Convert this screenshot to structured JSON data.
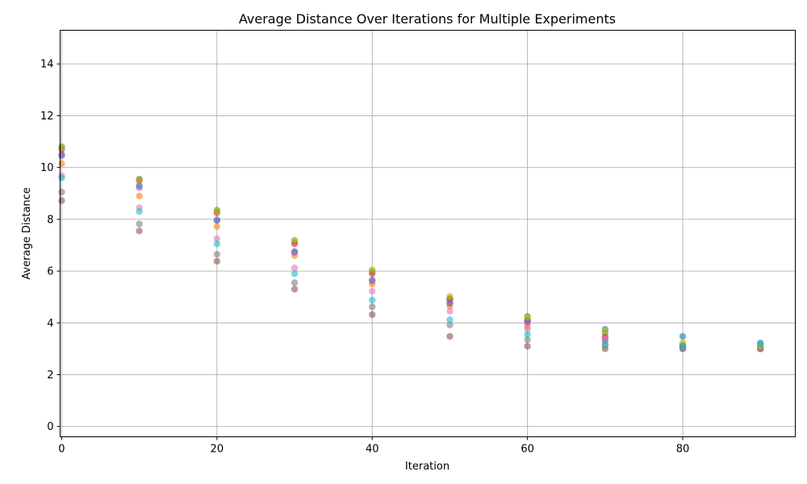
{
  "chart_data": {
    "type": "scatter",
    "title": "Average Distance Over Iterations for Multiple Experiments",
    "xlabel": "Iteration",
    "ylabel": "Average Distance",
    "xlim": [
      -0.2,
      94.5
    ],
    "ylim": [
      -0.4,
      15.3
    ],
    "xticks": [
      0,
      20,
      40,
      60,
      80
    ],
    "yticks": [
      0,
      2,
      4,
      6,
      8,
      10,
      12,
      14
    ],
    "grid": true,
    "legend": "none",
    "marker_alpha": 0.6,
    "series": [
      {
        "color": "#1f77b4",
        "x": [
          0,
          10,
          20,
          30,
          40,
          50,
          60,
          70,
          80,
          90
        ],
        "y": [
          10.5,
          9.3,
          7.95,
          6.75,
          5.65,
          4.75,
          4.05,
          3.75,
          3.48,
          3.22
        ]
      },
      {
        "color": "#ff7f0e",
        "x": [
          0,
          10,
          20,
          30,
          40,
          50,
          60,
          70,
          80,
          90
        ],
        "y": [
          10.15,
          8.9,
          7.72,
          6.6,
          5.5,
          4.65,
          3.85,
          3.35,
          3.15,
          3.0
        ]
      },
      {
        "color": "#2ca02c",
        "x": [
          0,
          10,
          20,
          30,
          40,
          50,
          60,
          70,
          80,
          90
        ],
        "y": [
          10.8,
          9.55,
          8.35,
          7.15,
          6.0,
          4.95,
          4.25,
          3.6,
          3.12,
          3.1
        ]
      },
      {
        "color": "#d62728",
        "x": [
          0,
          10,
          20,
          30,
          40,
          50,
          60,
          70,
          80,
          90
        ],
        "y": [
          10.7,
          9.5,
          8.25,
          7.05,
          5.9,
          4.9,
          4.1,
          3.45,
          3.1,
          3.05
        ]
      },
      {
        "color": "#9467bd",
        "x": [
          0,
          10,
          20,
          30,
          40,
          50,
          60,
          70,
          80,
          90
        ],
        "y": [
          10.45,
          9.22,
          7.98,
          6.72,
          5.62,
          4.78,
          4.0,
          3.3,
          3.05,
          3.02
        ]
      },
      {
        "color": "#8c564b",
        "x": [
          0,
          10,
          20,
          30,
          40,
          50,
          60,
          70,
          80,
          90
        ],
        "y": [
          8.72,
          7.55,
          6.38,
          5.3,
          4.32,
          3.48,
          3.1,
          3.0,
          3.0,
          3.0
        ]
      },
      {
        "color": "#e377c2",
        "x": [
          0,
          10,
          20,
          30,
          40,
          50,
          60,
          70,
          80,
          90
        ],
        "y": [
          9.68,
          8.45,
          7.25,
          6.12,
          5.22,
          4.45,
          3.75,
          3.4,
          3.02,
          3.04
        ]
      },
      {
        "color": "#7f7f7f",
        "x": [
          0,
          10,
          20,
          30,
          40,
          50,
          60,
          70,
          80,
          90
        ],
        "y": [
          9.05,
          7.82,
          6.65,
          5.55,
          4.62,
          3.92,
          3.35,
          3.12,
          3.0,
          3.0
        ]
      },
      {
        "color": "#bcbd22",
        "x": [
          0,
          10,
          20,
          30,
          40,
          50,
          60,
          70,
          80,
          90
        ],
        "y": [
          10.78,
          9.52,
          8.32,
          7.2,
          6.05,
          5.02,
          4.22,
          3.7,
          3.25,
          3.08
        ]
      },
      {
        "color": "#17becf",
        "x": [
          0,
          10,
          20,
          30,
          40,
          50,
          60,
          70,
          80,
          90
        ],
        "y": [
          9.6,
          8.3,
          7.05,
          5.9,
          4.88,
          4.12,
          3.55,
          3.18,
          3.08,
          3.2
        ]
      }
    ]
  }
}
